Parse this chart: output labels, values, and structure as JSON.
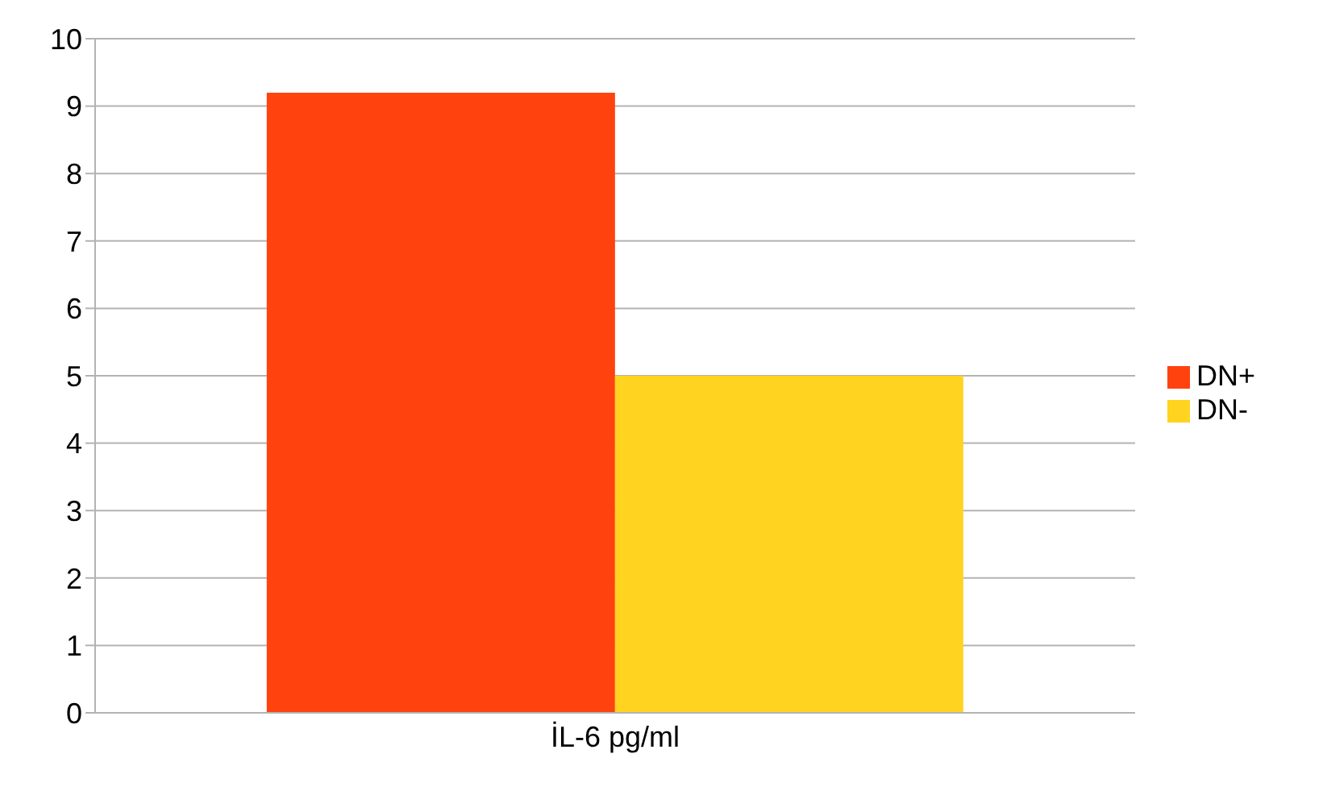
{
  "chart_data": {
    "type": "bar",
    "categories": [
      "İL-6 pg/ml"
    ],
    "series": [
      {
        "name": "DN+",
        "color": "#ff420e",
        "values": [
          9.2
        ]
      },
      {
        "name": "DN-",
        "color": "#ffd320",
        "values": [
          5.0
        ]
      }
    ],
    "ylim": [
      0,
      10
    ],
    "yticks": [
      0,
      1,
      2,
      3,
      4,
      5,
      6,
      7,
      8,
      9,
      10
    ],
    "grid": "y",
    "legend": "right"
  }
}
